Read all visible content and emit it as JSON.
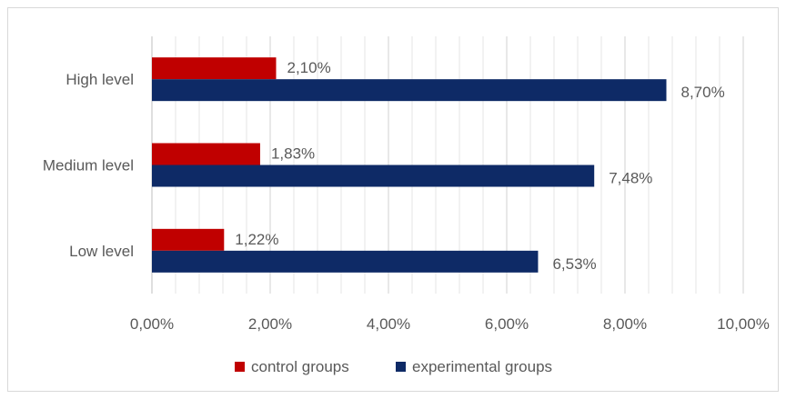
{
  "chart_data": {
    "type": "bar",
    "orientation": "horizontal",
    "categories": [
      "High level",
      "Medium level",
      "Low level"
    ],
    "series": [
      {
        "name": "control groups",
        "values": [
          2.1,
          1.83,
          1.22
        ],
        "labels": [
          "2,10%",
          "1,83%",
          "1,22%"
        ],
        "color": "#c00000"
      },
      {
        "name": "experimental groups",
        "values": [
          8.7,
          7.48,
          6.53
        ],
        "labels": [
          "8,70%",
          "7,48%",
          "6,53%"
        ],
        "color": "#0e2a66"
      }
    ],
    "xlim": [
      0,
      10
    ],
    "x_ticks": [
      0,
      2,
      4,
      6,
      8,
      10
    ],
    "x_tick_labels": [
      "0,00%",
      "2,00%",
      "4,00%",
      "6,00%",
      "8,00%",
      "10,00%"
    ],
    "grid": true,
    "minor_grid": true,
    "legend_position": "bottom",
    "title": "",
    "xlabel": "",
    "ylabel": ""
  }
}
